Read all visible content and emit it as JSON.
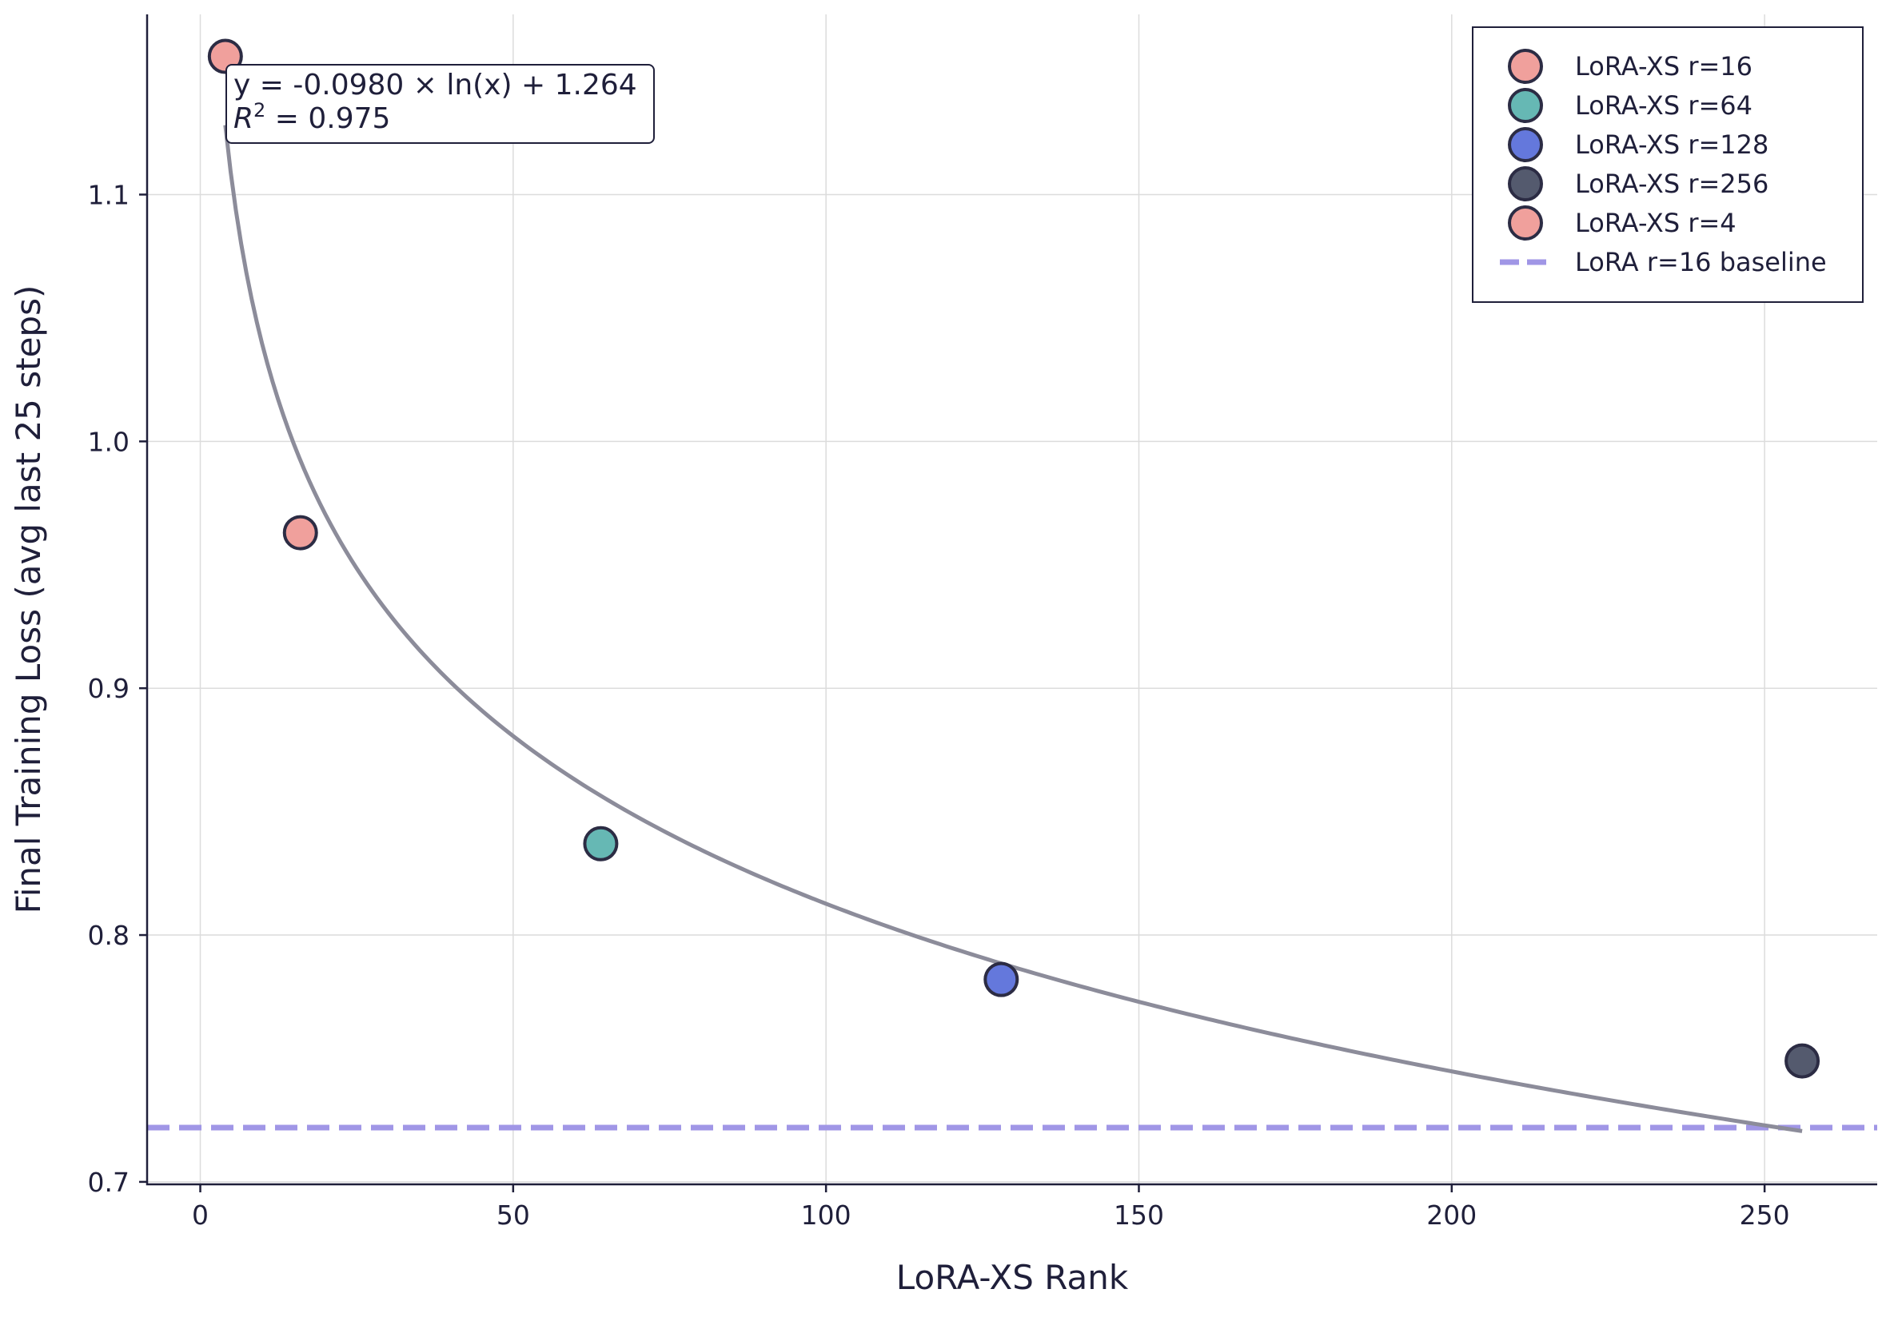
{
  "chart_data": {
    "type": "scatter",
    "title": "",
    "xlabel": "LoRA-XS Rank",
    "ylabel": "Final Training Loss (avg last 25 steps)",
    "xlim": [
      -8.5,
      268
    ],
    "ylim": [
      0.699,
      1.173
    ],
    "xticks": [
      0,
      50,
      100,
      150,
      200,
      250
    ],
    "yticks": [
      0.7,
      0.8,
      0.9,
      1.0,
      1.1
    ],
    "grid": true,
    "legend_position": "top-right",
    "points": [
      {
        "name": "LoRA-XS r=16",
        "x": 16,
        "y": 0.963,
        "color": "#f0a09c"
      },
      {
        "name": "LoRA-XS r=64",
        "x": 64,
        "y": 0.837,
        "color": "#66b8b4"
      },
      {
        "name": "LoRA-XS r=128",
        "x": 128,
        "y": 0.782,
        "color": "#6478dc"
      },
      {
        "name": "LoRA-XS r=256",
        "x": 256,
        "y": 0.749,
        "color": "#545a6e"
      },
      {
        "name": "LoRA-XS r=4",
        "x": 4,
        "y": 1.156,
        "color": "#f0a09c"
      }
    ],
    "fit": {
      "equation": "y = -0.0980 × ln(x) + 1.264",
      "r2_label": "= 0.975",
      "a": -0.098,
      "b": 1.264,
      "x_range": [
        4,
        256
      ],
      "color": "#8c8c9a"
    },
    "baseline": {
      "name": "LoRA r=16 baseline",
      "y": 0.722,
      "color": "#a096e6"
    }
  }
}
